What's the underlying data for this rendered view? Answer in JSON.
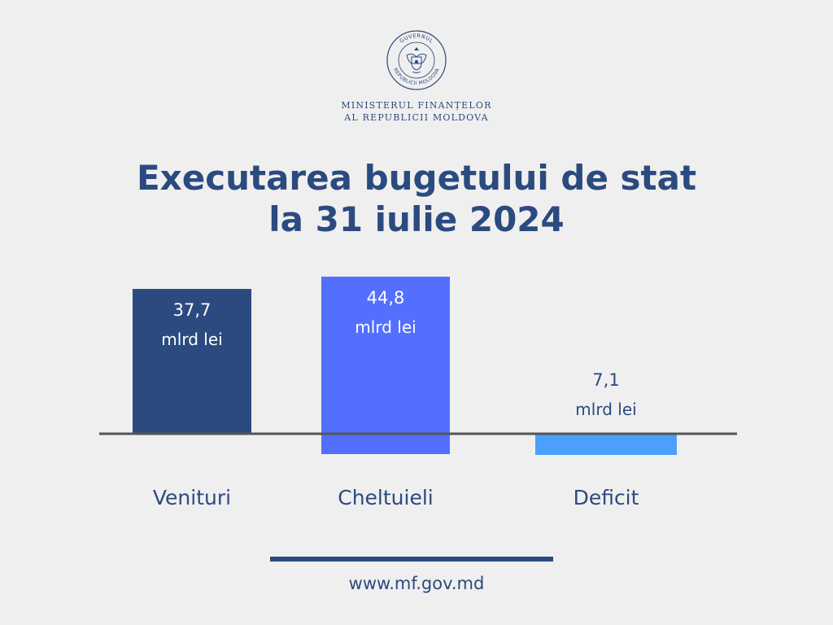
{
  "header": {
    "ministry_line1": "MINISTERUL FINANȚELOR",
    "ministry_line2": "AL REPUBLICII MOLDOVA",
    "logo_icon": "moldova-coat-of-arms-seal",
    "logo_text": "GUVERNUL REPUBLICII MOLDOVA"
  },
  "title_line1": "Executarea bugetului de stat",
  "title_line2": "la 31 iulie 2024",
  "colors": {
    "primary": "#2b4a7f",
    "venituri": "#2b4a7f",
    "cheltuieli": "#526ffe",
    "deficit": "#4aa0fc",
    "baseline": "#555555",
    "background": "#efefef"
  },
  "chart_data": {
    "type": "bar",
    "categories": [
      "Venituri",
      "Cheltuieli",
      "Deficit"
    ],
    "values": [
      37.7,
      44.8,
      7.1
    ],
    "data_labels": [
      [
        "37,7",
        "mlrd lei"
      ],
      [
        "44,8",
        "mlrd lei"
      ],
      [
        "7,1",
        "mlrd lei"
      ]
    ],
    "unit": "mlrd lei",
    "title": "Executarea bugetului de stat la 31 iulie 2024",
    "grid": false,
    "legend": "none"
  },
  "footer": {
    "url": "www.mf.gov.md"
  }
}
